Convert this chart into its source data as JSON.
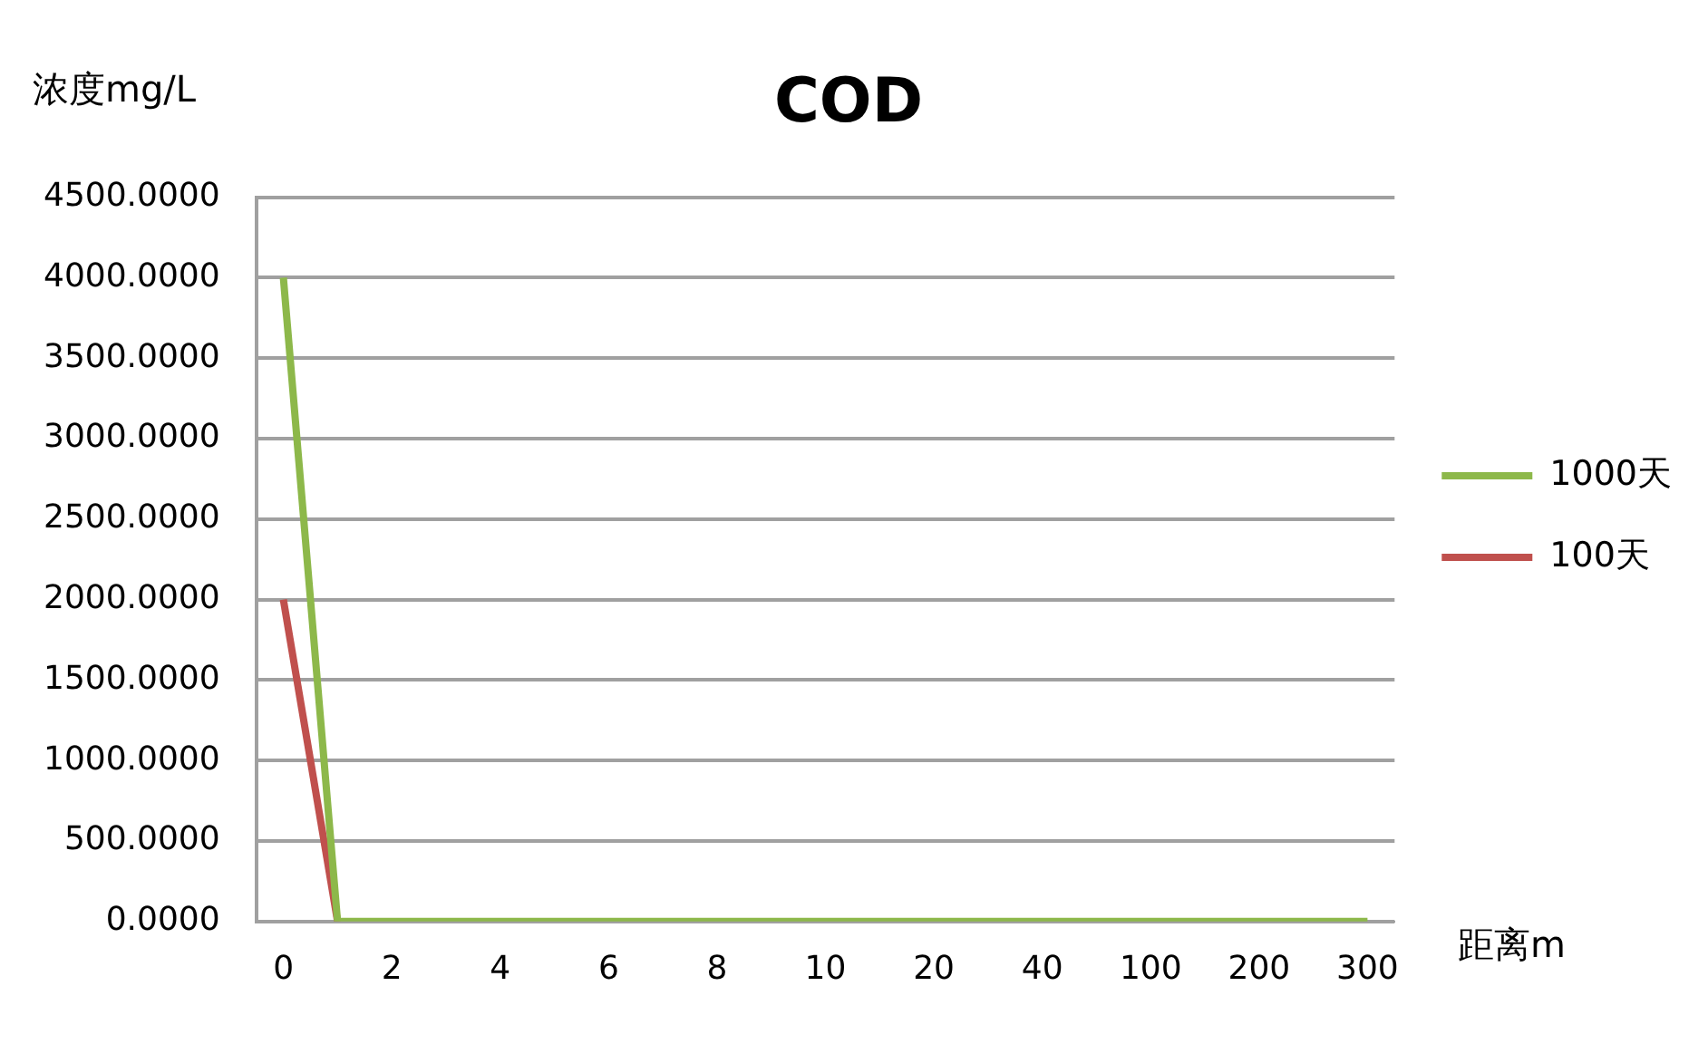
{
  "chart_data": {
    "type": "line",
    "title": "COD",
    "ylabel": "浓度mg/L",
    "xlabel": "距离m",
    "categories": [
      "0",
      null,
      "2",
      null,
      "4",
      null,
      "6",
      null,
      "8",
      null,
      "10",
      null,
      "20",
      null,
      "40",
      null,
      "100",
      null,
      "200",
      null,
      "300"
    ],
    "series": [
      {
        "name": "1000天",
        "color": "#8db84a",
        "values": [
          4000,
          0,
          0,
          0,
          0,
          0,
          0,
          0,
          0,
          0,
          0,
          0,
          0,
          0,
          0,
          0,
          0,
          0,
          0,
          0,
          0
        ]
      },
      {
        "name": "100天",
        "color": "#c0504d",
        "values": [
          2000,
          0,
          null,
          null,
          null,
          null,
          null,
          null,
          null,
          null,
          null,
          null,
          null,
          null,
          null,
          null,
          null,
          null,
          null,
          null,
          null
        ]
      }
    ],
    "ylim": [
      0,
      4500
    ],
    "yticks": [
      {
        "value": 0,
        "label": "0.0000"
      },
      {
        "value": 500,
        "label": "500.0000"
      },
      {
        "value": 1000,
        "label": "1000.0000"
      },
      {
        "value": 1500,
        "label": "1500.0000"
      },
      {
        "value": 2000,
        "label": "2000.0000"
      },
      {
        "value": 2500,
        "label": "2500.0000"
      },
      {
        "value": 3000,
        "label": "3000.0000"
      },
      {
        "value": 3500,
        "label": "3500.0000"
      },
      {
        "value": 4000,
        "label": "4000.0000"
      },
      {
        "value": 4500,
        "label": "4500.0000"
      }
    ],
    "grid": "y",
    "legend": "right",
    "marker": "none",
    "line_style": "solid"
  }
}
